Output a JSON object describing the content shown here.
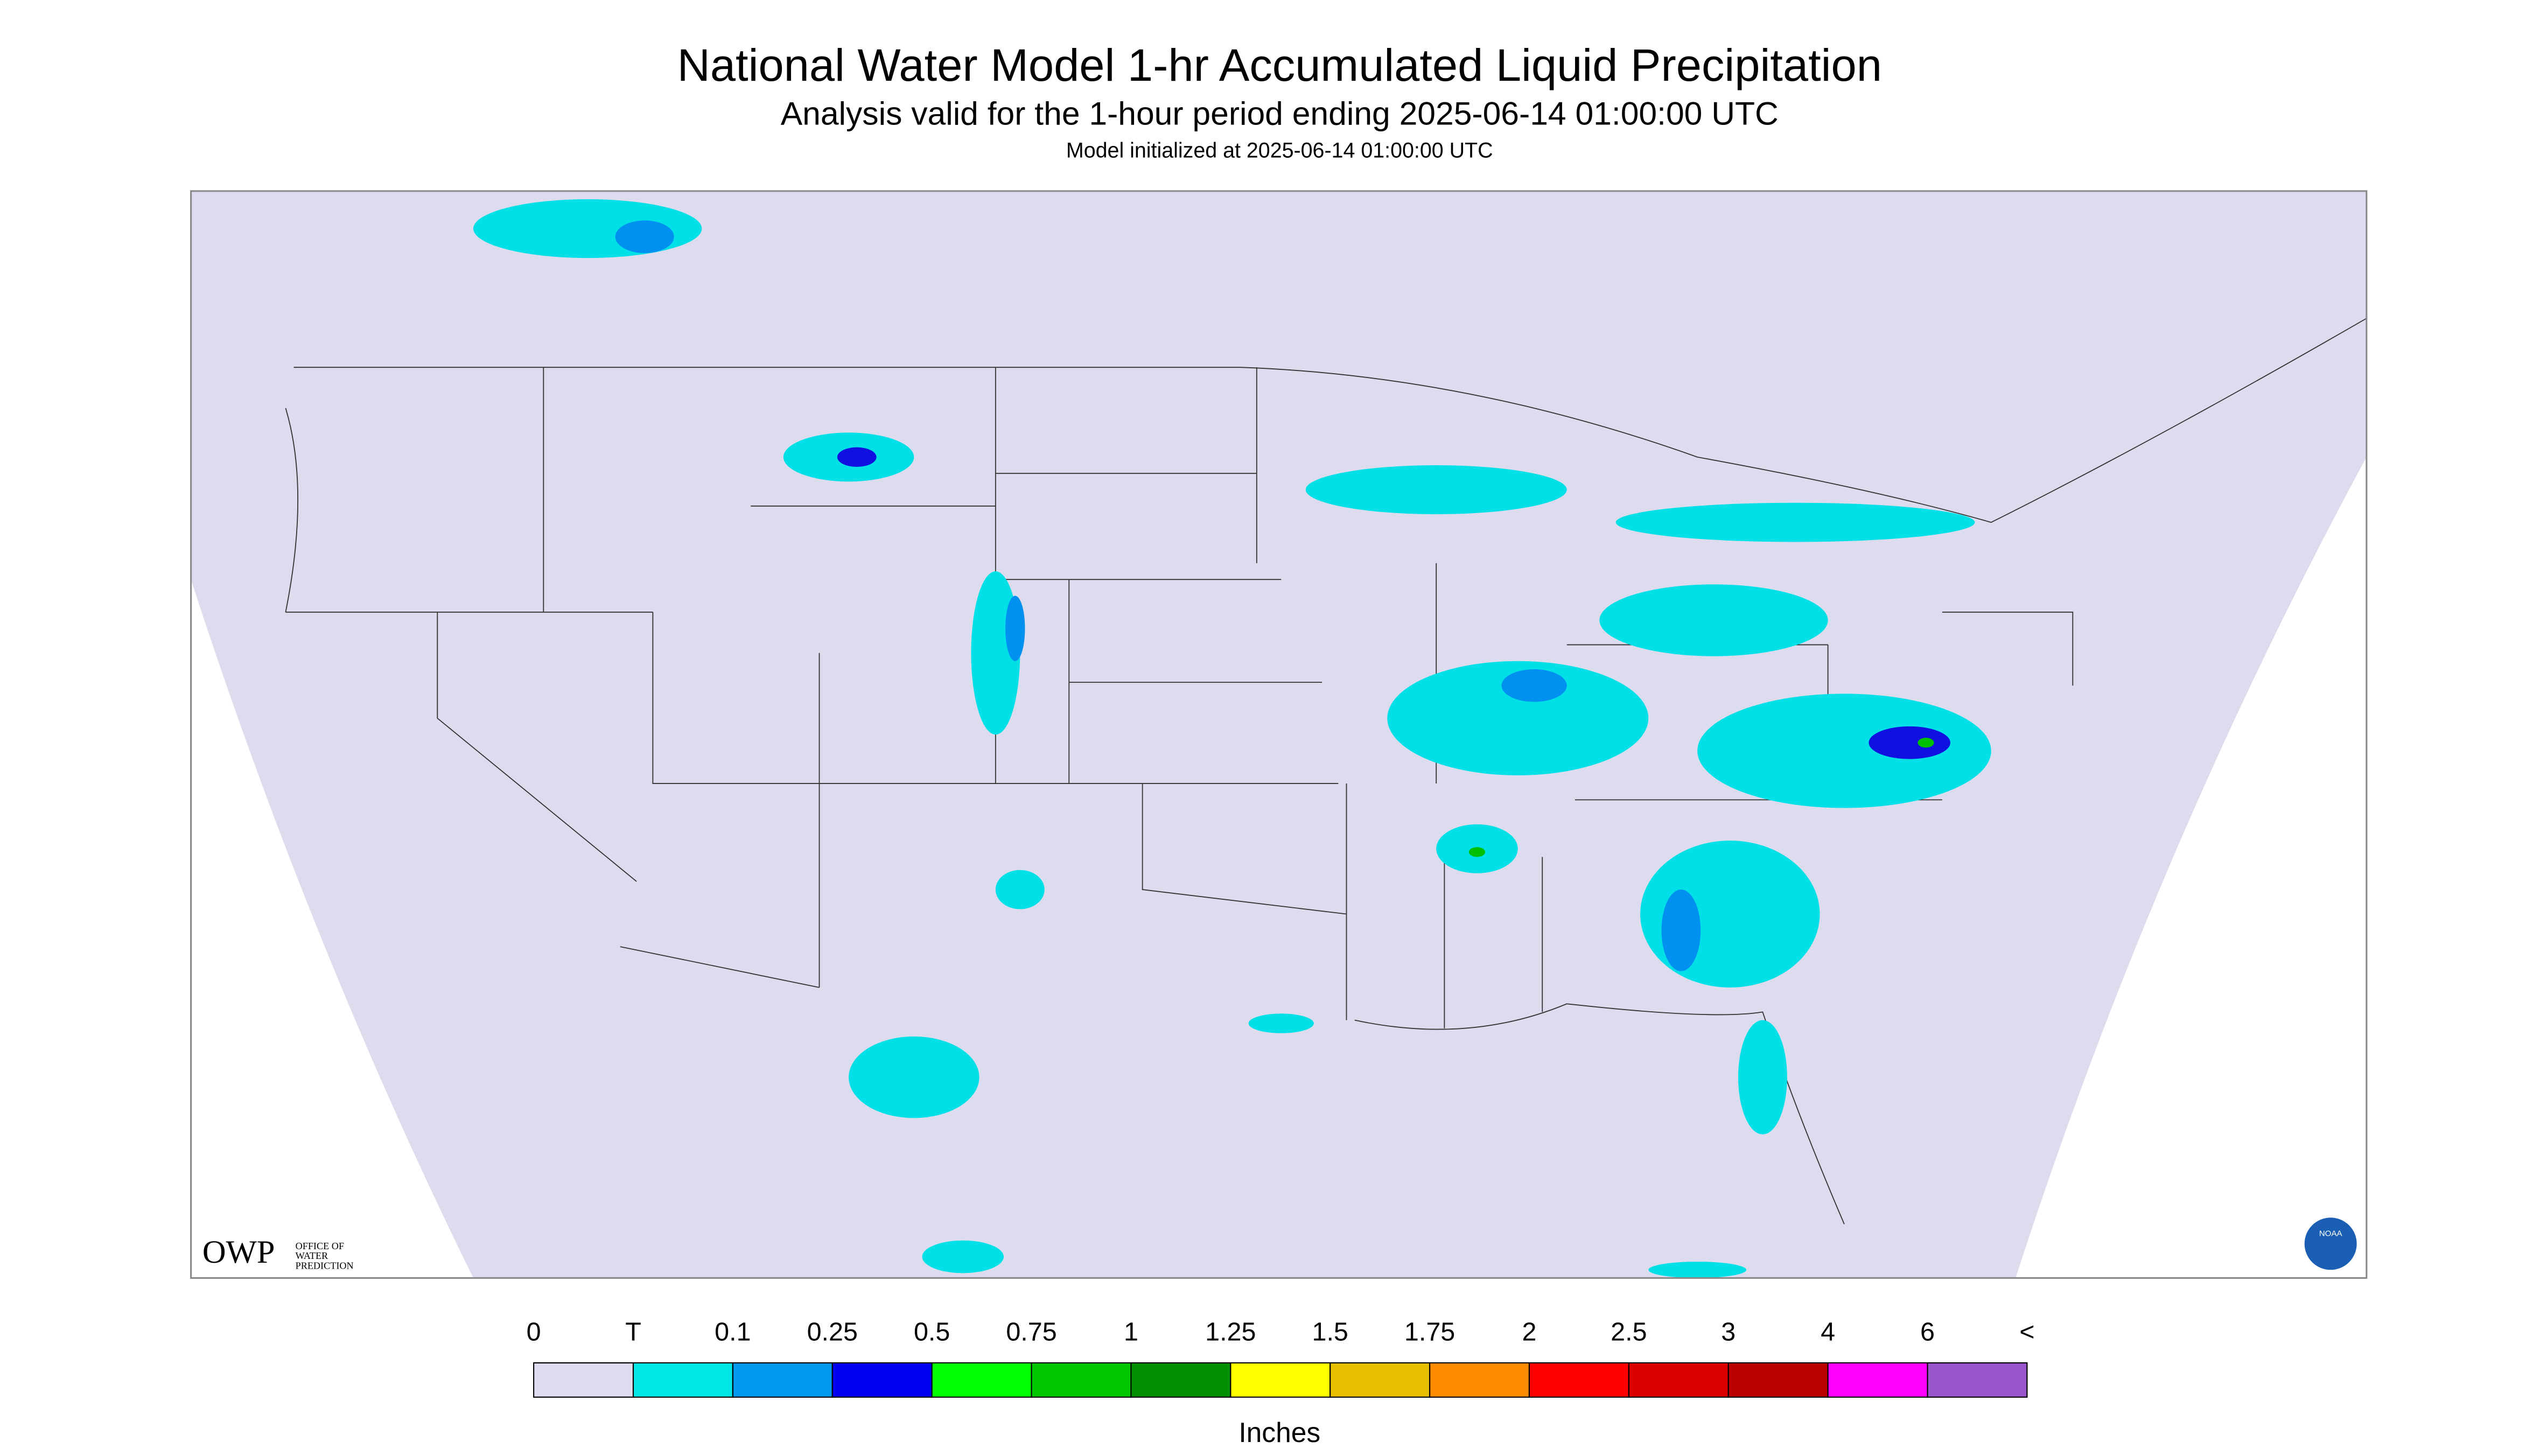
{
  "header": {
    "title": "National Water Model 1-hr Accumulated Liquid Precipitation",
    "subtitle": "Analysis valid for the 1-hour period ending 2025-06-14 01:00:00 UTC",
    "init": "Model initialized at 2025-06-14 01:00:00 UTC"
  },
  "legend": {
    "labels": [
      "0",
      "T",
      "0.1",
      "0.25",
      "0.5",
      "0.75",
      "1",
      "1.25",
      "1.5",
      "1.75",
      "2",
      "2.5",
      "3",
      "4",
      "6",
      "<"
    ],
    "colors": [
      "#dcdcee",
      "#00e6e6",
      "#0099f0",
      "#0000f0",
      "#00ff00",
      "#00c800",
      "#009000",
      "#ffff00",
      "#e6c000",
      "#ff8c00",
      "#ff0000",
      "#dd0000",
      "#bb0000",
      "#ff00ff",
      "#9955cc"
    ],
    "unit": "Inches"
  },
  "logos": {
    "owp": "OWP",
    "owp_name": [
      "OFFICE OF",
      "WATER",
      "PREDICTION"
    ],
    "noaa": "NOAA"
  }
}
